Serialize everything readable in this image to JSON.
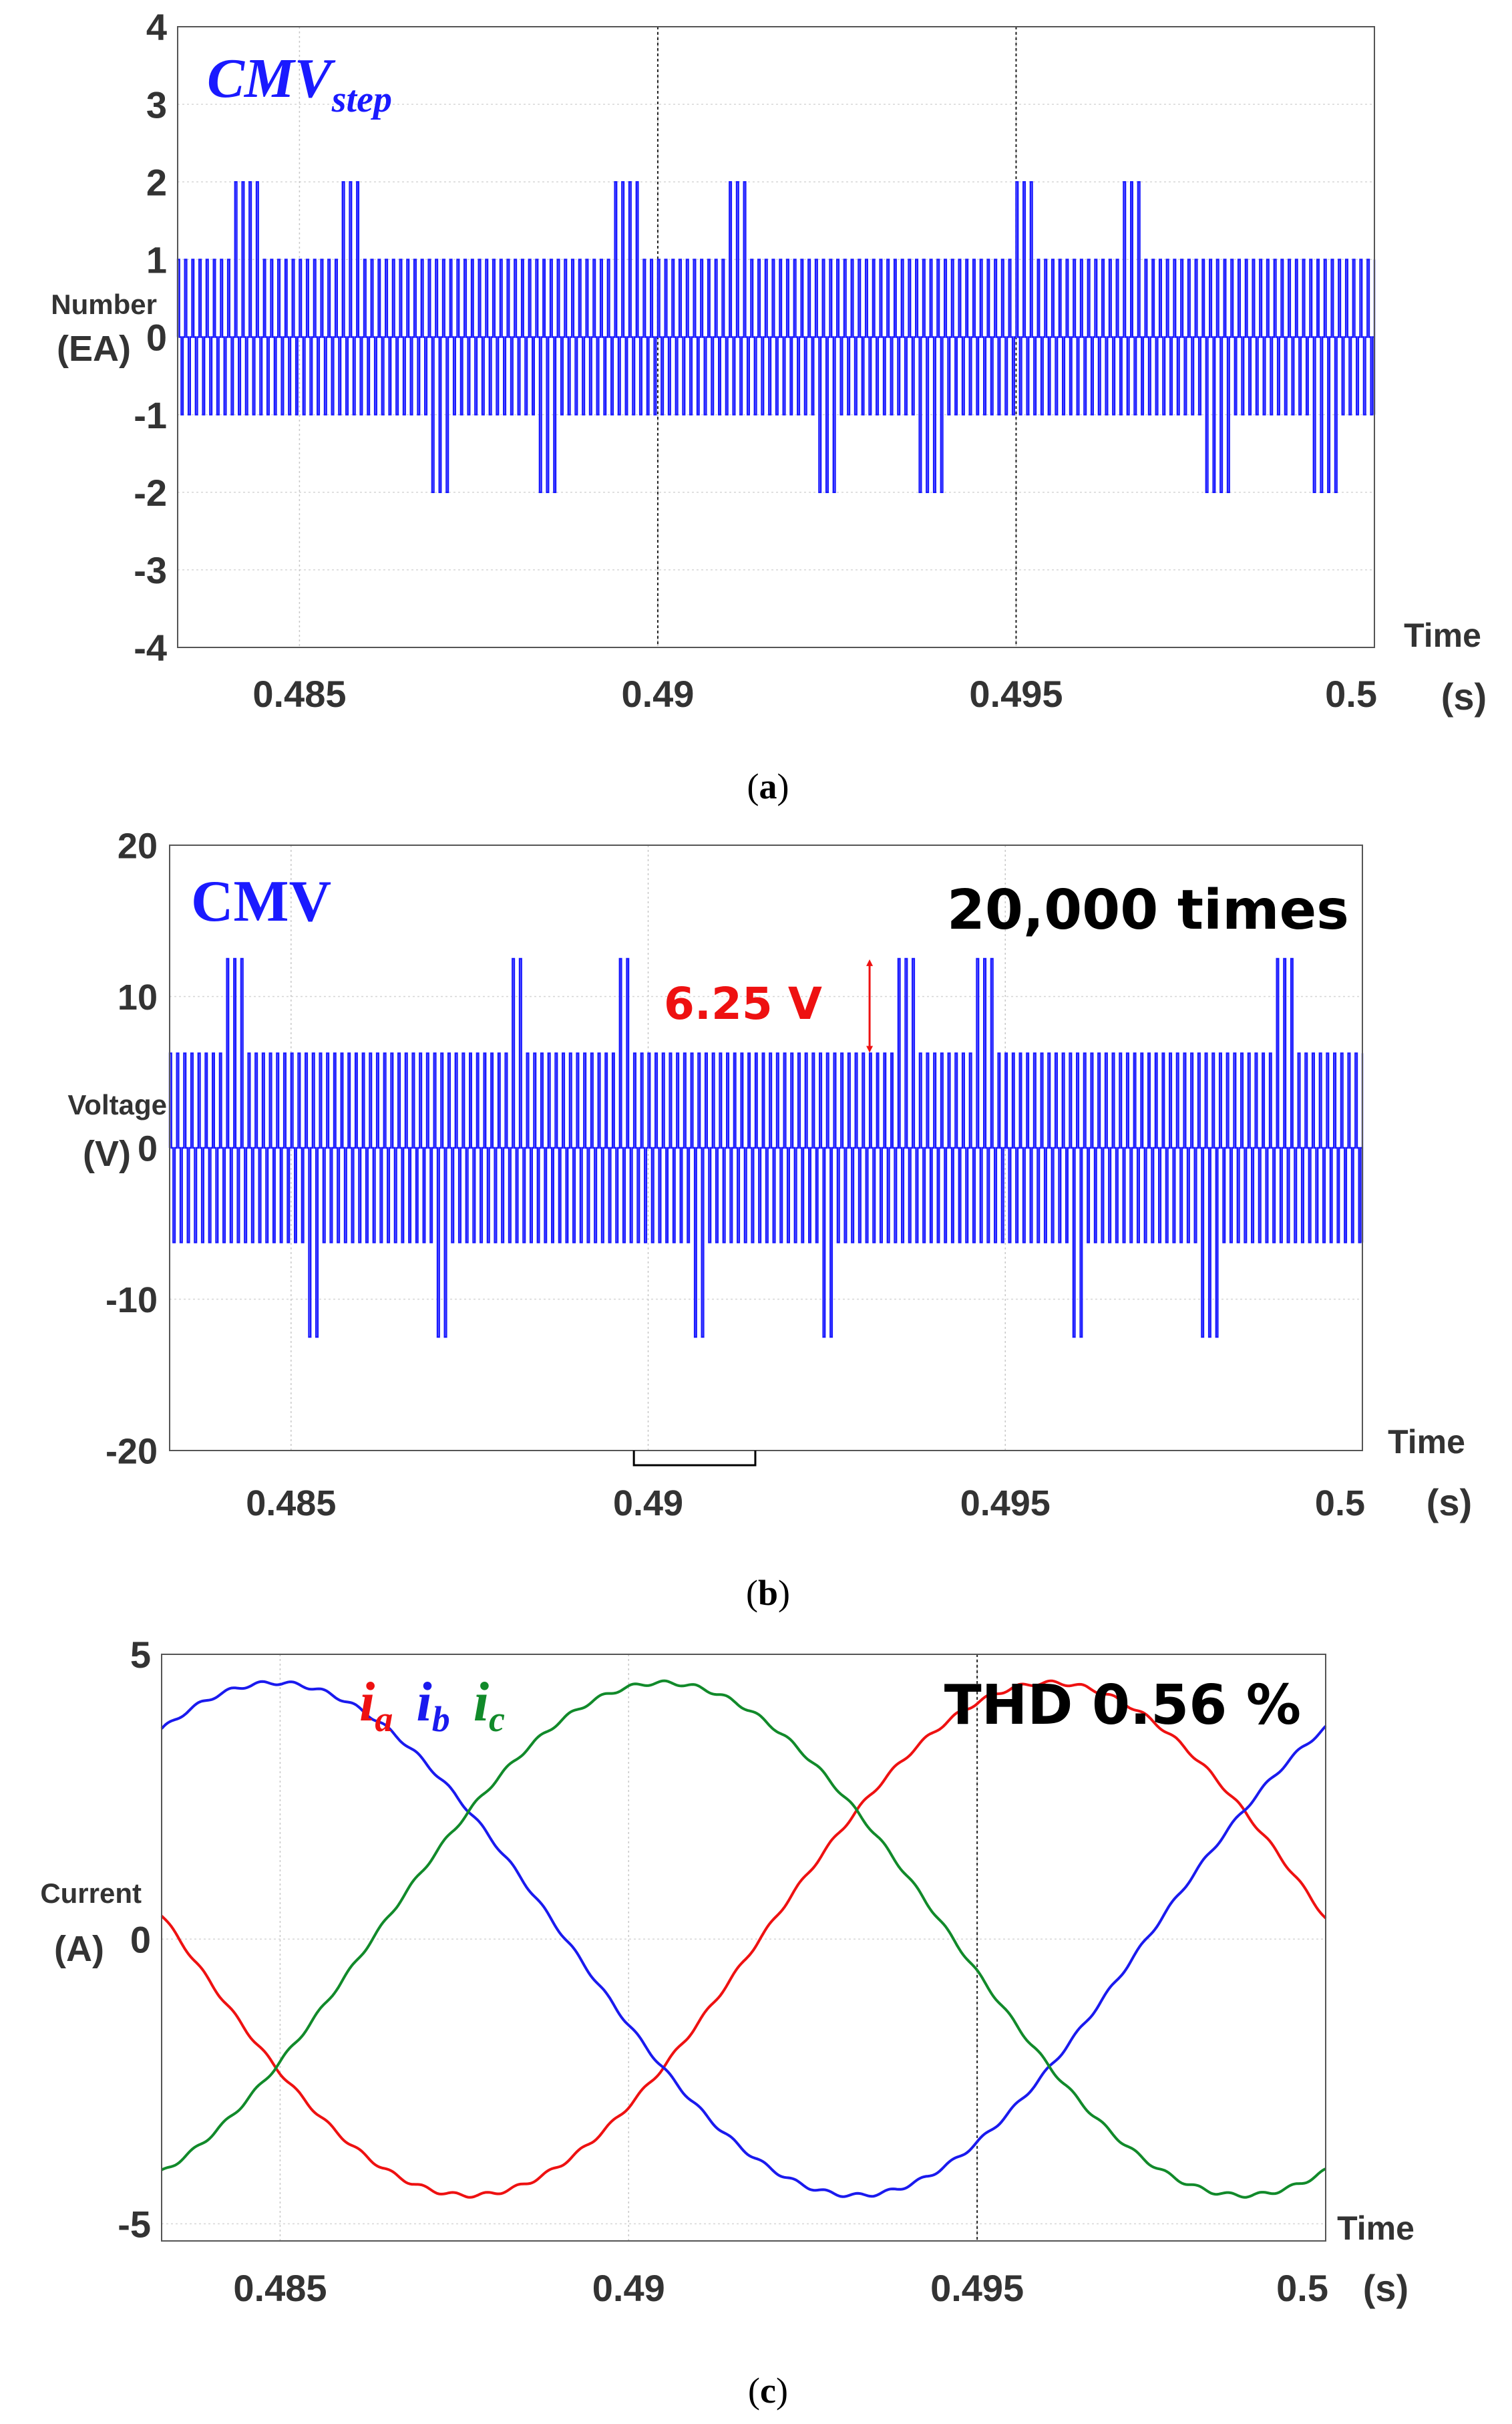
{
  "colors": {
    "cmv": "#1a1aff",
    "ia": "#ee1111",
    "ib": "#1a1aee",
    "ic": "#118a2a",
    "axis": "#333333",
    "annotation": "#ee1111"
  },
  "chart_data": [
    {
      "type": "line",
      "panel_caption": "(a)",
      "caption_letter": "a",
      "title_main": "CMV",
      "title_sub": "step",
      "ylabel_line1": "Number",
      "ylabel_line2": "(EA)",
      "xlabel": "Time",
      "x_unit": "(s)",
      "xlim": [
        0.4833,
        0.5
      ],
      "ylim": [
        -4,
        4
      ],
      "x_ticks": [
        0.485,
        0.49,
        0.495,
        0.5
      ],
      "x_tick_labels": [
        "0.485",
        "0.49",
        "0.495",
        "0.5"
      ],
      "y_ticks": [
        -4,
        -3,
        -2,
        -1,
        0,
        1,
        2,
        3,
        4
      ],
      "y_tick_labels": [
        "-4",
        "-3",
        "-2",
        "-1",
        "0",
        "1",
        "2",
        "3",
        "4"
      ],
      "vlines": [
        0.49,
        0.495
      ],
      "grid": true,
      "series": [
        {
          "name": "CMV_step",
          "kind": "pwm_square",
          "switching_period_s": 0.0001,
          "base_levels": [
            -1,
            1
          ],
          "bursts": [
            {
              "t_start": 0.48408,
              "t_end": 0.48442,
              "level": 2
            },
            {
              "t_start": 0.48555,
              "t_end": 0.48588,
              "level": 2
            },
            {
              "t_start": 0.48672,
              "t_end": 0.48706,
              "level": -2
            },
            {
              "t_start": 0.4882,
              "t_end": 0.48854,
              "level": -2
            },
            {
              "t_start": 0.48937,
              "t_end": 0.48971,
              "level": 2
            },
            {
              "t_start": 0.49093,
              "t_end": 0.49127,
              "level": 2
            },
            {
              "t_start": 0.4921,
              "t_end": 0.49244,
              "level": -2
            },
            {
              "t_start": 0.49358,
              "t_end": 0.49392,
              "level": -2
            },
            {
              "t_start": 0.49494,
              "t_end": 0.49528,
              "level": 2
            },
            {
              "t_start": 0.4964,
              "t_end": 0.49674,
              "level": 2
            },
            {
              "t_start": 0.49758,
              "t_end": 0.49792,
              "level": -2
            },
            {
              "t_start": 0.49908,
              "t_end": 0.49942,
              "level": -2
            }
          ]
        }
      ]
    },
    {
      "type": "line",
      "panel_caption": "(b)",
      "caption_letter": "b",
      "title_main": "CMV",
      "annotation_top_right": "20,000 times",
      "annotation_step": "6.25 V",
      "ylabel_line1": "Voltage",
      "ylabel_line2": "(V)",
      "xlabel": "Time",
      "x_unit": "(s)",
      "xlim": [
        0.4833,
        0.5
      ],
      "ylim": [
        -20,
        20
      ],
      "x_ticks": [
        0.485,
        0.49,
        0.495,
        0.5
      ],
      "x_tick_labels": [
        "0.485",
        "0.49",
        "0.495",
        "0.5"
      ],
      "y_ticks": [
        -20,
        -10,
        0,
        10,
        20
      ],
      "y_tick_labels": [
        "-20",
        "-10",
        "0",
        "10",
        "20"
      ],
      "grid": true,
      "step_annotation_range_V": [
        6.25,
        12.5
      ],
      "step_annotation_x": 0.4931,
      "bracket_x_range": [
        0.4898,
        0.4915
      ],
      "series": [
        {
          "name": "CMV",
          "kind": "pwm_square",
          "switching_period_s": 0.0001,
          "base_levels": [
            -6.25,
            6.25
          ],
          "bursts": [
            {
              "t_start": 0.48408,
              "t_end": 0.48434,
              "level": 12.5
            },
            {
              "t_start": 0.48512,
              "t_end": 0.48538,
              "level": -12.5
            },
            {
              "t_start": 0.4869,
              "t_end": 0.48716,
              "level": -12.5
            },
            {
              "t_start": 0.48802,
              "t_end": 0.48828,
              "level": 12.5
            },
            {
              "t_start": 0.4895,
              "t_end": 0.48976,
              "level": 12.5
            },
            {
              "t_start": 0.49052,
              "t_end": 0.49078,
              "level": -12.5
            },
            {
              "t_start": 0.4923,
              "t_end": 0.49256,
              "level": -12.5
            },
            {
              "t_start": 0.4934,
              "t_end": 0.49374,
              "level": 12.5
            },
            {
              "t_start": 0.49456,
              "t_end": 0.49482,
              "level": 12.5
            },
            {
              "t_start": 0.49582,
              "t_end": 0.49608,
              "level": -12.5
            },
            {
              "t_start": 0.49768,
              "t_end": 0.49794,
              "level": -12.5
            },
            {
              "t_start": 0.49878,
              "t_end": 0.49904,
              "level": 12.5
            }
          ]
        }
      ]
    },
    {
      "type": "line",
      "panel_caption": "(c)",
      "caption_letter": "c",
      "annotation_top_right": "THD 0.56 %",
      "legend_entries": [
        {
          "letter": "i",
          "sub": "a",
          "color_key": "ia"
        },
        {
          "letter": "i",
          "sub": "b",
          "color_key": "ib"
        },
        {
          "letter": "i",
          "sub": "c",
          "color_key": "ic"
        }
      ],
      "ylabel_line1": "Current",
      "ylabel_line2": "(A)",
      "xlabel": "Time",
      "x_unit": "(s)",
      "xlim": [
        0.4833,
        0.5
      ],
      "ylim": [
        -5.3,
        5
      ],
      "x_ticks": [
        0.485,
        0.49,
        0.495,
        0.5
      ],
      "x_tick_labels": [
        "0.485",
        "0.49",
        "0.495",
        "0.5"
      ],
      "y_ticks": [
        -5,
        0,
        5
      ],
      "y_tick_labels": [
        "-5",
        "0",
        "5"
      ],
      "vlines": [
        0.495
      ],
      "grid": true,
      "series": [
        {
          "name": "i_a",
          "kind": "sine",
          "amplitude": 4.5,
          "frequency_hz": 60,
          "peak_time_s": 0.49605
        },
        {
          "name": "i_b",
          "kind": "sine",
          "amplitude": 4.5,
          "frequency_hz": 60,
          "peak_time_s": 0.48493
        },
        {
          "name": "i_c",
          "kind": "sine",
          "amplitude": 4.5,
          "frequency_hz": 60,
          "peak_time_s": 0.49049
        }
      ]
    }
  ]
}
